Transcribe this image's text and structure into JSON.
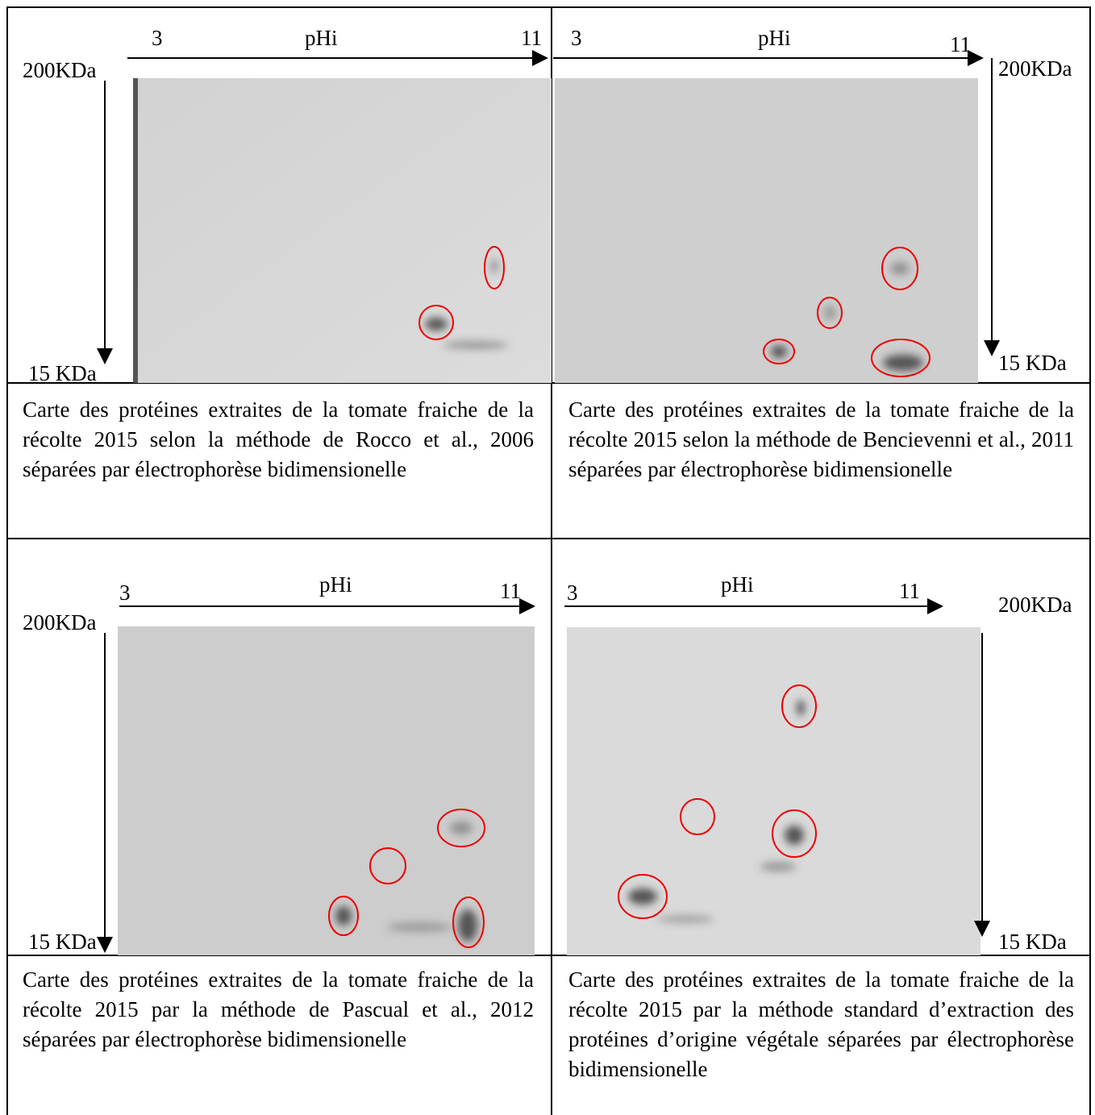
{
  "panels": [
    {
      "axis_label": "pHi",
      "x_start": "3",
      "x_end": "11",
      "y_top": "200KDa",
      "y_bottom": "15 KDa",
      "caption": "Carte des protéines extraites de la tomate fraiche de la récolte 2015 selon la méthode de Rocco et al., 2006 séparées par électrophorèse bidimensionelle"
    },
    {
      "axis_label": "pHi",
      "x_start": "3",
      "x_end": "11",
      "y_top": "200KDa",
      "y_bottom": "15 KDa",
      "caption": "Carte des protéines extraites de la tomate fraiche de la récolte 2015 selon la méthode de Bencievenni et al., 2011 séparées par électrophorèse bidimensionelle"
    },
    {
      "axis_label": "pHi",
      "x_start": "3",
      "x_end": "11",
      "y_top": "200KDa",
      "y_bottom": "15 KDa",
      "caption": "Carte des protéines extraites de la tomate fraiche de la récolte 2015 par la méthode de Pascual et al., 2012 séparées par électrophorèse bidimensionelle"
    },
    {
      "axis_label": "pHi",
      "x_start": "3",
      "x_end": "11",
      "y_top": "200KDa",
      "y_bottom": "15 KDa",
      "caption": "Carte des protéines extraites de la tomate fraiche de la récolte 2015 par la méthode standard d’extraction des protéines d’origine végétale séparées par électrophorèse bidimensionelle"
    }
  ]
}
